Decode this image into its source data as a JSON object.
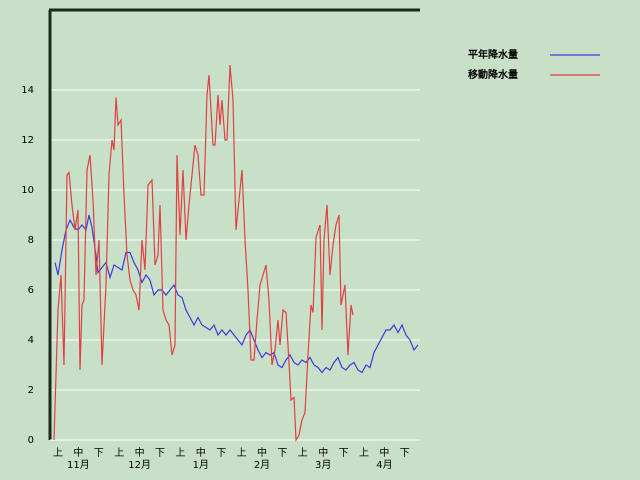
{
  "chart_data": {
    "type": "line",
    "ylim": [
      0,
      17.2
    ],
    "yticks": [
      0,
      2,
      4,
      6,
      8,
      10,
      12,
      14
    ],
    "xlim": [
      -2,
      183
    ],
    "grid": true,
    "categories": [
      "上",
      "中",
      "下",
      "上",
      "中",
      "下",
      "上",
      "中",
      "下",
      "上",
      "中",
      "下",
      "上",
      "中",
      "下",
      "上",
      "中",
      "下"
    ],
    "months": [
      "11月",
      "12月",
      "1月",
      "2月",
      "3月",
      "4月"
    ],
    "legend": "right",
    "series": [
      {
        "name": "平年降水量",
        "color": "#3b3bdc",
        "x": [
          0.5,
          2,
          4,
          6,
          8,
          10,
          12,
          14,
          16,
          17.5,
          19,
          21,
          22,
          24,
          26,
          28,
          30,
          32,
          34,
          36,
          38,
          40,
          42,
          44,
          46,
          48,
          50,
          52,
          54,
          56,
          58,
          60,
          62,
          64,
          66,
          68,
          70,
          72,
          74,
          76,
          78,
          80,
          82,
          84,
          86,
          88,
          90,
          92,
          94,
          96,
          98,
          100,
          102,
          104,
          106,
          108,
          110,
          112,
          114,
          116,
          118,
          120,
          122,
          124,
          126,
          128,
          130,
          132,
          134,
          136,
          138,
          140,
          142,
          144,
          146,
          148,
          150,
          152,
          154,
          156,
          158,
          160,
          162,
          164,
          166,
          168,
          170,
          172,
          174,
          176,
          178,
          180,
          182
        ],
        "values": [
          7.1,
          6.6,
          7.6,
          8.4,
          8.8,
          8.5,
          8.4,
          8.6,
          8.4,
          9.0,
          8.5,
          7.4,
          6.7,
          6.9,
          7.1,
          6.5,
          7.0,
          6.9,
          6.8,
          7.5,
          7.5,
          7.1,
          6.8,
          6.3,
          6.6,
          6.4,
          5.8,
          6.0,
          6.0,
          5.8,
          6.0,
          6.2,
          5.8,
          5.7,
          5.2,
          4.9,
          4.6,
          4.9,
          4.6,
          4.5,
          4.4,
          4.6,
          4.2,
          4.4,
          4.2,
          4.4,
          4.2,
          4.0,
          3.8,
          4.2,
          4.4,
          4.0,
          3.6,
          3.3,
          3.5,
          3.4,
          3.5,
          3.0,
          2.9,
          3.2,
          3.4,
          3.1,
          3.0,
          3.2,
          3.1,
          3.3,
          3.0,
          2.9,
          2.7,
          2.9,
          2.8,
          3.1,
          3.3,
          2.9,
          2.8,
          3.0,
          3.1,
          2.8,
          2.7,
          3.0,
          2.9,
          3.5,
          3.8,
          4.1,
          4.4,
          4.4,
          4.6,
          4.3,
          4.6,
          4.2,
          4.0,
          3.6,
          3.8
        ]
      },
      {
        "name": "移動降水量",
        "color": "#e04040",
        "x": [
          0,
          2,
          3.5,
          5,
          6.5,
          7.5,
          9,
          10.5,
          12,
          13,
          14,
          15,
          16.5,
          18,
          19.5,
          21,
          22.5,
          24,
          26,
          27.5,
          29,
          30,
          31,
          32,
          33.5,
          35,
          36.5,
          38,
          39.5,
          41,
          42.5,
          44,
          45.5,
          47,
          49,
          50.5,
          52,
          53,
          54.5,
          56,
          57.5,
          59,
          60.5,
          61.5,
          63,
          64.5,
          66,
          67.5,
          69,
          70.5,
          72,
          73.5,
          75,
          76.5,
          77.5,
          78.5,
          79.5,
          80.5,
          82,
          83,
          84,
          85.5,
          86.5,
          88,
          89.5,
          91,
          92.5,
          94,
          95.5,
          97,
          98.5,
          100,
          101.5,
          103,
          104.5,
          106,
          107.5,
          109,
          110.5,
          112,
          113,
          114.5,
          116,
          117,
          118.5,
          120,
          121,
          122.5,
          124,
          125.5,
          127,
          128.5,
          129.5,
          131,
          133,
          134,
          135,
          136.5,
          138,
          139.5,
          141,
          142.5,
          143.5,
          144.5,
          145.5,
          147,
          148.5,
          149.5
        ],
        "values": [
          0,
          5.2,
          6.6,
          3.0,
          10.6,
          10.7,
          9.4,
          8.4,
          9.2,
          2.8,
          5.4,
          5.6,
          10.8,
          11.4,
          9.6,
          6.6,
          8.0,
          3.0,
          6.2,
          10.6,
          12.0,
          11.6,
          13.7,
          12.6,
          12.8,
          9.8,
          7.4,
          6.4,
          6.0,
          5.8,
          5.2,
          8.0,
          6.8,
          10.2,
          10.4,
          7.0,
          7.4,
          9.4,
          5.2,
          4.8,
          4.6,
          3.4,
          3.8,
          11.4,
          8.2,
          10.8,
          8.0,
          9.4,
          10.6,
          11.8,
          11.4,
          9.8,
          9.8,
          13.8,
          14.6,
          13.2,
          11.8,
          11.8,
          13.8,
          12.6,
          13.6,
          12.0,
          12.0,
          15.0,
          13.6,
          8.4,
          9.6,
          10.8,
          8.0,
          6.0,
          3.2,
          3.2,
          4.8,
          6.2,
          6.6,
          7.0,
          5.6,
          3.0,
          3.6,
          4.8,
          3.8,
          5.2,
          5.1,
          3.8,
          1.6,
          1.7,
          0,
          0.2,
          0.8,
          1.1,
          3.4,
          5.4,
          5.1,
          8.1,
          8.6,
          4.4,
          8.0,
          9.4,
          6.6,
          7.8,
          8.6,
          9.0,
          5.4,
          5.8,
          6.2,
          3.4,
          5.4,
          5.0
        ]
      }
    ]
  }
}
